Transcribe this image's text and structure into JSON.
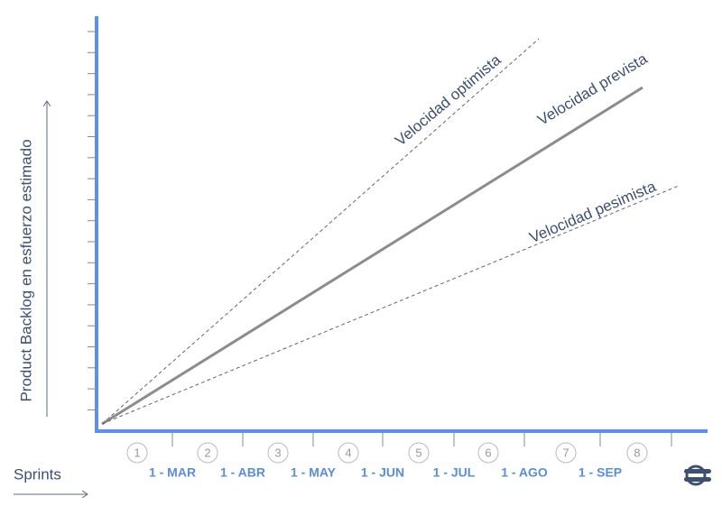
{
  "axes": {
    "y_label": "Product Backlog en esfuerzo estimado",
    "x_label": "Sprints"
  },
  "sprints": [
    1,
    2,
    3,
    4,
    5,
    6,
    7,
    8
  ],
  "dates": [
    "1 - MAR",
    "1 - ABR",
    "1 - MAY",
    "1 - JUN",
    "1 - JUL",
    "1 - AGO",
    "1 - SEP"
  ],
  "lines": {
    "optimistic": "Velocidad optimista",
    "expected": "Velocidad prevista",
    "pessimistic": "Velocidad pesimista"
  }
}
